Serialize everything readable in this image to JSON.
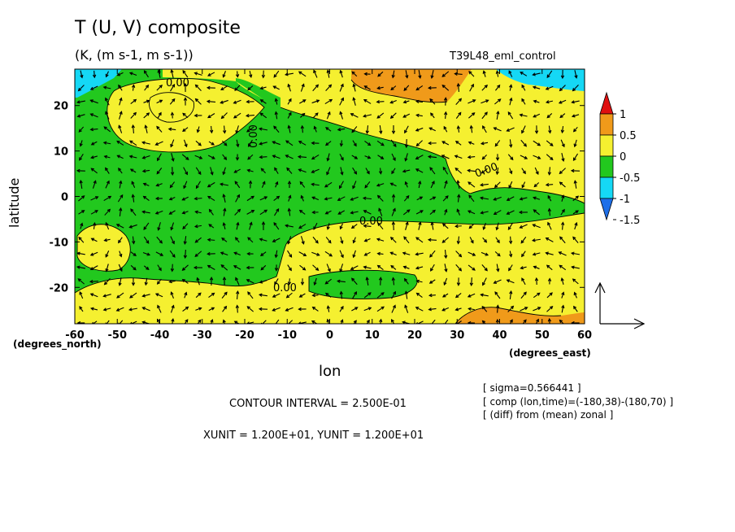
{
  "chart_data": {
    "type": "heatmap",
    "title": "T (U, V) composite",
    "subtitle": "(K, (m s-1, m s-1))",
    "run_label": "T39L48_eml_control",
    "xlabel": "lon",
    "ylabel": "latitude",
    "x_unit_label": "(degrees_east)",
    "y_unit_label": "(degrees_north)",
    "xlim": [
      -60,
      60
    ],
    "ylim": [
      -28,
      28
    ],
    "x_ticks": [
      -60,
      -50,
      -40,
      -30,
      -20,
      -10,
      0,
      10,
      20,
      30,
      40,
      50,
      60
    ],
    "x_tick_labels": [
      "-60",
      "-50",
      "-40",
      "-30",
      "-20",
      "-10",
      "0",
      "10",
      "20",
      "30",
      "40",
      "50",
      "60"
    ],
    "y_ticks": [
      -20,
      -10,
      0,
      10,
      20
    ],
    "y_tick_labels": [
      "-20",
      "-10",
      "0",
      "10",
      "20"
    ],
    "colorbar": {
      "levels": [
        -1.5,
        -1,
        -0.5,
        0,
        0.5,
        1
      ],
      "labels": [
        "1",
        "0.5",
        "0",
        "-0.5",
        "-1",
        "-1.5"
      ],
      "colors": [
        "#1e6fe8",
        "#15d8f5",
        "#22c81e",
        "#f5f030",
        "#f09a1a",
        "#e01010"
      ]
    },
    "contour_labels": [
      "0.00",
      "0.00",
      "0.00",
      "0.00",
      "0.00"
    ],
    "contour_interval": "CONTOUR INTERVAL = 2.500E-01",
    "vector_units": "XUNIT = 1.200E+01, YUNIT = 1.200E+01",
    "info_lines": [
      "[ sigma=0.566441 ]",
      "[ comp (lon,time)=(-180,38)-(180,70) ]",
      "[ (diff) from (mean) zonal ]"
    ]
  }
}
